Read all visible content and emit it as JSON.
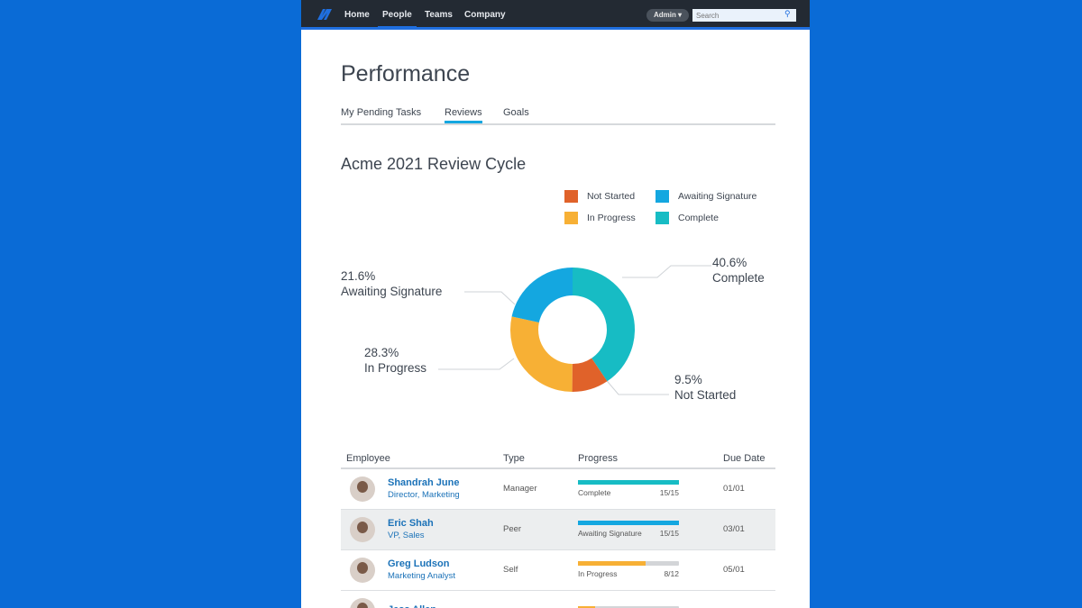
{
  "nav": {
    "items": [
      "Home",
      "People",
      "Teams",
      "Company"
    ],
    "active": 1,
    "admin_label": "Admin ▾",
    "search_placeholder": "Search"
  },
  "page": {
    "title": "Performance",
    "tabs": [
      "My Pending Tasks",
      "Reviews",
      "Goals"
    ],
    "active_tab": 1
  },
  "section_title": "Acme 2021 Review Cycle",
  "colors": {
    "not_started": "#e0622a",
    "awaiting": "#14a7e0",
    "in_progress": "#f7b035",
    "complete": "#17bcc4",
    "brand": "#1f6fe0"
  },
  "chart_data": {
    "type": "pie",
    "donut": true,
    "legend": [
      "Not Started",
      "Awaiting Signature",
      "In Progress",
      "Complete"
    ],
    "slices": [
      {
        "name": "Complete",
        "value": 40.6,
        "label": "40.6%",
        "color": "#17bcc4"
      },
      {
        "name": "Not Started",
        "value": 9.5,
        "label": "9.5%",
        "color": "#e0622a"
      },
      {
        "name": "In Progress",
        "value": 28.3,
        "label": "28.3%",
        "color": "#f7b035"
      },
      {
        "name": "Awaiting Signature",
        "value": 21.6,
        "label": "21.6%",
        "color": "#14a7e0"
      }
    ]
  },
  "table": {
    "headers": [
      "Employee",
      "Type",
      "Progress",
      "Due Date"
    ],
    "rows": [
      {
        "name": "Shandrah June",
        "title": "Director, Marketing",
        "type": "Manager",
        "status": "Complete",
        "count": "15/15",
        "progress": 1.0,
        "color": "#17bcc4",
        "due": "01/01"
      },
      {
        "name": "Eric Shah",
        "title": "VP, Sales",
        "type": "Peer",
        "status": "Awaiting Signature",
        "count": "15/15",
        "progress": 1.0,
        "color": "#14a7e0",
        "due": "03/01"
      },
      {
        "name": "Greg Ludson",
        "title": "Marketing Analyst",
        "type": "Self",
        "status": "In Progress",
        "count": "8/12",
        "progress": 0.667,
        "color": "#f7b035",
        "due": "05/01"
      },
      {
        "name": "Jess Allen",
        "progress": 0.17,
        "color": "#f7b035"
      }
    ]
  }
}
